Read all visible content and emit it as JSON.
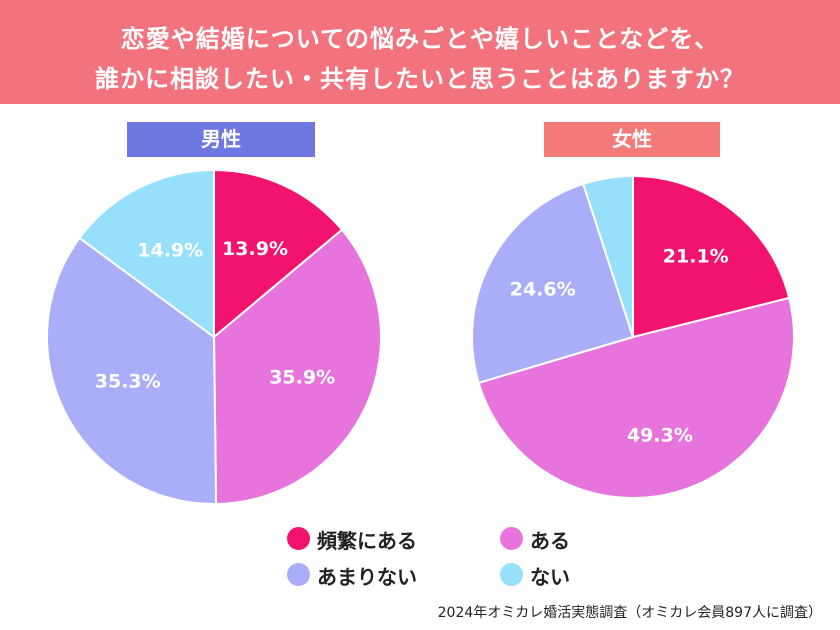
{
  "title": {
    "line1": "恋愛や結婚についての悩みごとや嬉しいことなどを、",
    "line2": "誰かに相談したい・共有したいと思うことはありますか？"
  },
  "colors": {
    "banner": "#f2727e",
    "male_tag": "#6e78e0",
    "female_tag": "#f47a7a",
    "frequent": "#f2136f",
    "sometimes": "#e674dc",
    "rarely": "#aaaef8",
    "never": "#96e0fb"
  },
  "legend": [
    {
      "label": "頻繁にある",
      "color": "#f2136f"
    },
    {
      "label": "ある",
      "color": "#e674dc"
    },
    {
      "label": "あまりない",
      "color": "#aaaef8"
    },
    {
      "label": "ない",
      "color": "#96e0fb"
    }
  ],
  "chart_data": [
    {
      "type": "pie",
      "title": "男性",
      "labels": [
        "頻繁にある",
        "ある",
        "あまりない",
        "ない"
      ],
      "values": [
        13.9,
        35.9,
        35.3,
        14.9
      ],
      "value_labels": [
        "13.9%",
        "35.9%",
        "35.3%",
        "14.9%"
      ],
      "colors": [
        "#f2136f",
        "#e674dc",
        "#aaaef8",
        "#96e0fb"
      ]
    },
    {
      "type": "pie",
      "title": "女性",
      "labels": [
        "頻繁にある",
        "ある",
        "あまりない",
        "ない"
      ],
      "values": [
        21.1,
        49.3,
        24.6,
        5.0
      ],
      "value_labels": [
        "21.1%",
        "49.3%",
        "24.6%",
        ""
      ],
      "colors": [
        "#f2136f",
        "#e674dc",
        "#aaaef8",
        "#96e0fb"
      ]
    }
  ],
  "source": "2024年オミカレ婚活実態調査（オミカレ会員897人に調査）"
}
